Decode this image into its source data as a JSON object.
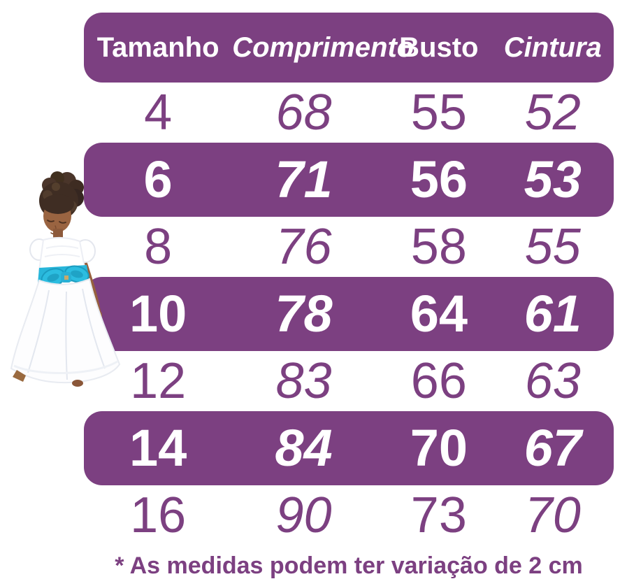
{
  "chart_data": {
    "type": "table",
    "columns": [
      "Tamanho",
      "Comprimento",
      "Busto",
      "Cintura"
    ],
    "rows": [
      [
        "4",
        "68",
        "55",
        "52"
      ],
      [
        "6",
        "71",
        "56",
        "53"
      ],
      [
        "8",
        "76",
        "58",
        "55"
      ],
      [
        "10",
        "78",
        "64",
        "61"
      ],
      [
        "12",
        "83",
        "66",
        "63"
      ],
      [
        "14",
        "84",
        "70",
        "67"
      ],
      [
        "16",
        "90",
        "73",
        "70"
      ]
    ],
    "highlighted_sizes": [
      "6",
      "10",
      "14"
    ],
    "italic_columns": [
      "Comprimento",
      "Cintura"
    ]
  },
  "footnote": "* As medidas podem ter variação de 2 cm",
  "colors": {
    "purple": "#7C4081",
    "row_text_purple": "#7C4081",
    "highlight_text": "#FFFFFF",
    "bow_blue": "#25B7DC"
  },
  "image": {
    "description": "menina de vestido branco com laço azul"
  }
}
